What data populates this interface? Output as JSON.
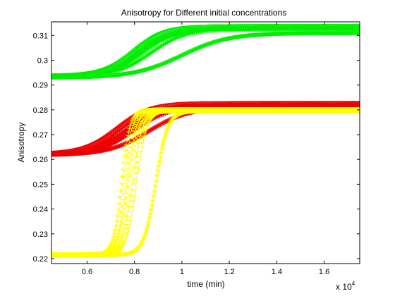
{
  "chart_data": {
    "type": "scatter",
    "title": "Anisotropy for Different initial concentrations",
    "xlabel": "time (min)",
    "ylabel": "Anisotropy",
    "x_multiplier_label": "x 10",
    "x_multiplier_exp": "4",
    "xlim": [
      0.45,
      1.75
    ],
    "ylim": [
      0.218,
      0.3155
    ],
    "x_ticks": [
      0.6,
      0.8,
      1.0,
      1.2,
      1.4,
      1.6
    ],
    "x_tick_labels": [
      "0.6",
      "0.8",
      "1",
      "1.2",
      "1.4",
      "1.6"
    ],
    "y_ticks": [
      0.22,
      0.23,
      0.24,
      0.25,
      0.26,
      0.27,
      0.28,
      0.29,
      0.3,
      0.31
    ],
    "y_tick_labels": [
      "0.22",
      "0.23",
      "0.24",
      "0.25",
      "0.26",
      "0.27",
      "0.28",
      "0.29",
      "0.3",
      "0.31"
    ],
    "grid": false,
    "legend": "none",
    "colors": {
      "green": "#00ee00",
      "red": "#ee0000",
      "yellow": "#ffff00"
    },
    "series": [
      {
        "group": "green",
        "marker": "square",
        "y0": 0.2935,
        "y1": 0.3135,
        "x_mid": 0.8,
        "width": 0.065
      },
      {
        "group": "green",
        "marker": "x",
        "y0": 0.2935,
        "y1": 0.313,
        "x_mid": 0.84,
        "width": 0.07
      },
      {
        "group": "green",
        "marker": "plus",
        "y0": 0.2935,
        "y1": 0.3125,
        "x_mid": 0.87,
        "width": 0.072
      },
      {
        "group": "green",
        "marker": "triangle",
        "y0": 0.2935,
        "y1": 0.313,
        "x_mid": 0.82,
        "width": 0.068
      },
      {
        "group": "green",
        "marker": "star",
        "y0": 0.293,
        "y1": 0.311,
        "x_mid": 1.0,
        "width": 0.1
      },
      {
        "group": "red",
        "marker": "square",
        "y0": 0.262,
        "y1": 0.2825,
        "x_mid": 0.73,
        "width": 0.07
      },
      {
        "group": "red",
        "marker": "x",
        "y0": 0.262,
        "y1": 0.282,
        "x_mid": 0.76,
        "width": 0.072
      },
      {
        "group": "red",
        "marker": "plus",
        "y0": 0.262,
        "y1": 0.2815,
        "x_mid": 0.8,
        "width": 0.075
      },
      {
        "group": "red",
        "marker": "triangle",
        "y0": 0.262,
        "y1": 0.282,
        "x_mid": 0.78,
        "width": 0.07
      },
      {
        "group": "red",
        "marker": "star",
        "y0": 0.2618,
        "y1": 0.281,
        "x_mid": 0.86,
        "width": 0.085
      },
      {
        "group": "yellow",
        "marker": "plus",
        "y0": 0.2215,
        "y1": 0.28,
        "x_mid": 0.745,
        "width": 0.018
      },
      {
        "group": "yellow",
        "marker": "circle",
        "y0": 0.2215,
        "y1": 0.28,
        "x_mid": 0.76,
        "width": 0.02
      },
      {
        "group": "yellow",
        "marker": "x",
        "y0": 0.2215,
        "y1": 0.2795,
        "x_mid": 0.775,
        "width": 0.022
      },
      {
        "group": "yellow",
        "marker": "square",
        "y0": 0.2215,
        "y1": 0.28,
        "x_mid": 0.8,
        "width": 0.022
      },
      {
        "group": "yellow",
        "marker": "star",
        "y0": 0.2215,
        "y1": 0.2795,
        "x_mid": 0.89,
        "width": 0.025
      }
    ]
  }
}
